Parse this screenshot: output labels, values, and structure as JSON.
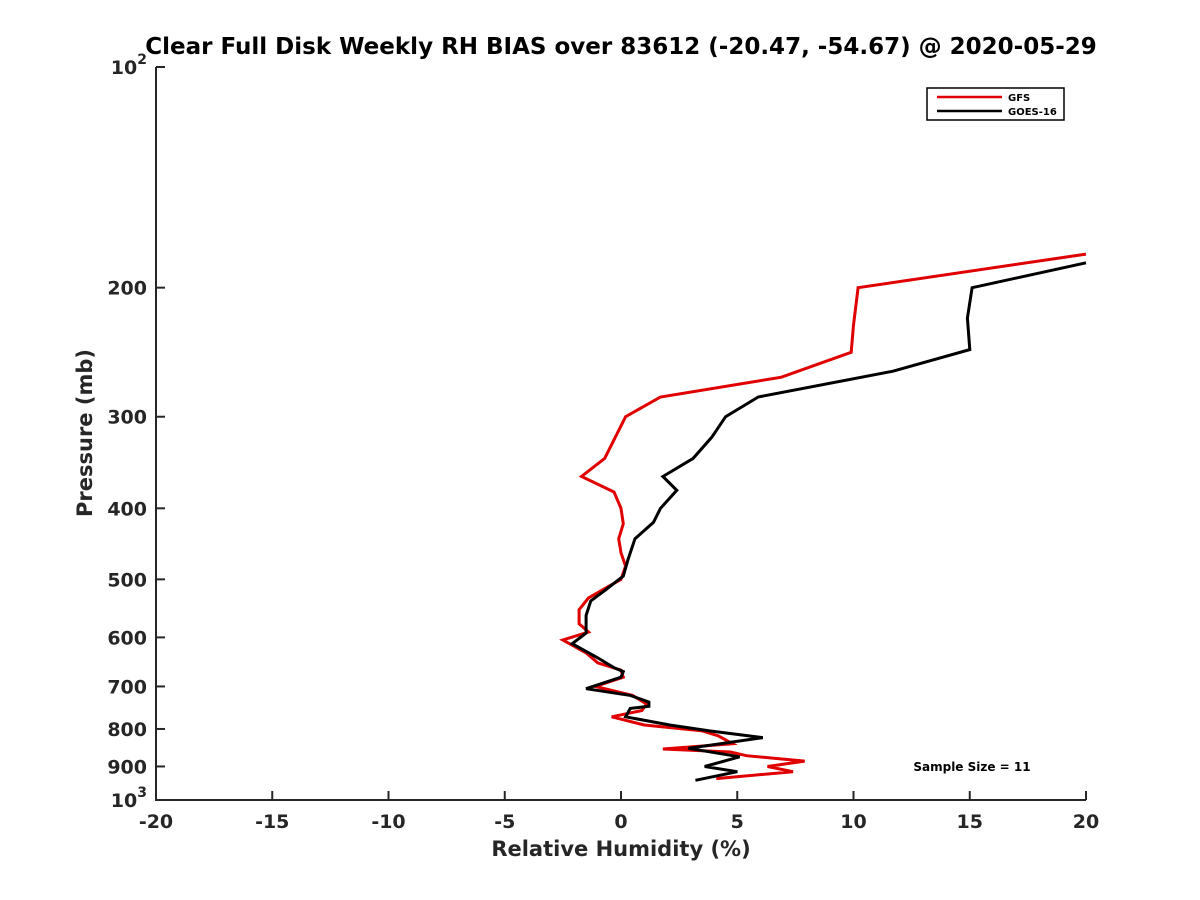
{
  "chart_data": {
    "type": "line",
    "title": "Clear Full Disk Weekly RH BIAS over 83612 (-20.47, -54.67) @ 2020-05-29",
    "xlabel": "Relative Humidity (%)",
    "ylabel": "Pressure (mb)",
    "xlim": [
      -20,
      20
    ],
    "ylim": [
      100,
      1000
    ],
    "y_scale": "log",
    "y_reversed": true,
    "x_ticks": [
      -20,
      -15,
      -10,
      -5,
      0,
      5,
      10,
      15,
      20
    ],
    "y_ticks": [
      {
        "value": 100,
        "base": "10",
        "exp": "2"
      },
      {
        "value": 200,
        "label": "200"
      },
      {
        "value": 300,
        "label": "300"
      },
      {
        "value": 400,
        "label": "400"
      },
      {
        "value": 500,
        "label": "500"
      },
      {
        "value": 600,
        "label": "600"
      },
      {
        "value": 700,
        "label": "700"
      },
      {
        "value": 800,
        "label": "800"
      },
      {
        "value": 900,
        "label": "900"
      },
      {
        "value": 1000,
        "base": "10",
        "exp": "3"
      }
    ],
    "grid": false,
    "legend_position": "top-right",
    "annotation": "Sample Size = 11",
    "series": [
      {
        "name": "GFS",
        "color": "#e00000",
        "points": [
          [
            20.0,
            180
          ],
          [
            10.2,
            200
          ],
          [
            10.0,
            225
          ],
          [
            9.9,
            245
          ],
          [
            6.9,
            265
          ],
          [
            1.7,
            282
          ],
          [
            0.2,
            300
          ],
          [
            -0.7,
            342
          ],
          [
            -1.7,
            362
          ],
          [
            -0.3,
            380
          ],
          [
            0.0,
            400
          ],
          [
            0.1,
            420
          ],
          [
            -0.1,
            440
          ],
          [
            0.0,
            460
          ],
          [
            0.2,
            480
          ],
          [
            0.0,
            500
          ],
          [
            -1.4,
            530
          ],
          [
            -1.8,
            550
          ],
          [
            -1.8,
            575
          ],
          [
            -1.4,
            590
          ],
          [
            -2.5,
            605
          ],
          [
            -1.5,
            630
          ],
          [
            -1.0,
            650
          ],
          [
            0.0,
            665
          ],
          [
            0.1,
            680
          ],
          [
            -1.1,
            700
          ],
          [
            0.5,
            720
          ],
          [
            1.1,
            740
          ],
          [
            0.9,
            755
          ],
          [
            -0.4,
            770
          ],
          [
            1.0,
            790
          ],
          [
            3.5,
            805
          ],
          [
            4.2,
            818
          ],
          [
            4.8,
            838
          ],
          [
            1.8,
            852
          ],
          [
            4.7,
            860
          ],
          [
            5.4,
            870
          ],
          [
            7.9,
            885
          ],
          [
            6.3,
            900
          ],
          [
            7.4,
            915
          ],
          [
            4.1,
            935
          ]
        ]
      },
      {
        "name": "GOES-16",
        "color": "#000000",
        "points": [
          [
            20.0,
            185
          ],
          [
            15.1,
            200
          ],
          [
            14.9,
            220
          ],
          [
            15.0,
            243
          ],
          [
            11.7,
            260
          ],
          [
            5.9,
            282
          ],
          [
            4.5,
            300
          ],
          [
            3.9,
            320
          ],
          [
            3.1,
            342
          ],
          [
            1.8,
            362
          ],
          [
            2.4,
            378
          ],
          [
            1.7,
            400
          ],
          [
            1.4,
            418
          ],
          [
            0.6,
            440
          ],
          [
            0.3,
            470
          ],
          [
            0.1,
            495
          ],
          [
            -0.6,
            515
          ],
          [
            -1.3,
            535
          ],
          [
            -1.5,
            560
          ],
          [
            -1.5,
            592
          ],
          [
            -2.1,
            612
          ],
          [
            -1.0,
            640
          ],
          [
            -0.3,
            660
          ],
          [
            0.1,
            668
          ],
          [
            0.0,
            680
          ],
          [
            -1.5,
            705
          ],
          [
            0.4,
            720
          ],
          [
            1.2,
            735
          ],
          [
            1.2,
            745
          ],
          [
            0.4,
            750
          ],
          [
            0.2,
            770
          ],
          [
            2.1,
            790
          ],
          [
            3.8,
            805
          ],
          [
            6.1,
            822
          ],
          [
            2.9,
            850
          ],
          [
            5.1,
            873
          ],
          [
            3.6,
            900
          ],
          [
            5.0,
            915
          ],
          [
            3.2,
            940
          ]
        ]
      }
    ]
  }
}
